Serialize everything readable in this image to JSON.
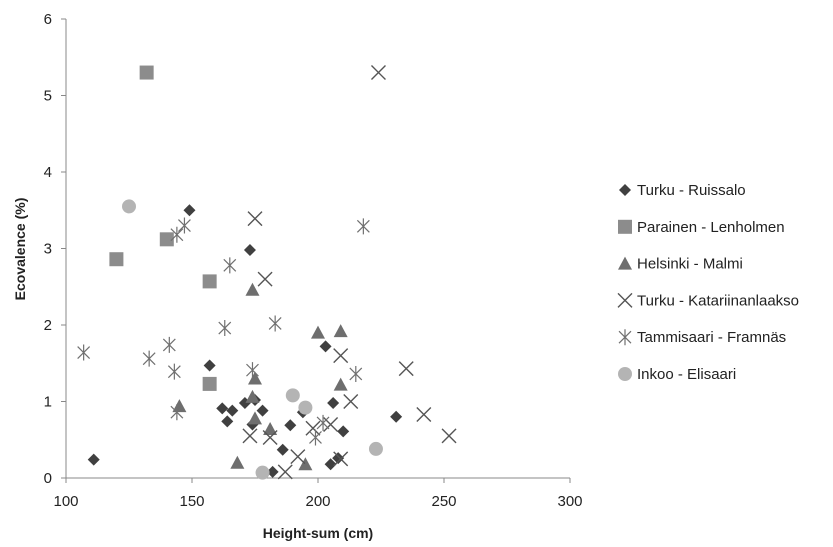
{
  "chart_data": {
    "type": "scatter",
    "title": "",
    "xlabel": "Height-sum (cm)",
    "ylabel": "Ecovalence (%)",
    "xlim": [
      100,
      300
    ],
    "ylim": [
      0,
      6
    ],
    "xticks": [
      "100",
      "150",
      "200",
      "250",
      "300"
    ],
    "yticks": [
      "0",
      "1",
      "2",
      "3",
      "4",
      "5",
      "6"
    ],
    "grid": false,
    "legend_position": "right",
    "series": [
      {
        "name": "Turku - Ruissalo",
        "marker": "diamond",
        "color": "#404040",
        "points": [
          [
            111,
            0.24
          ],
          [
            149,
            3.5
          ],
          [
            157,
            1.47
          ],
          [
            164,
            0.74
          ],
          [
            166,
            0.88
          ],
          [
            171,
            0.98
          ],
          [
            173,
            2.98
          ],
          [
            175,
            1.02
          ],
          [
            178,
            0.88
          ],
          [
            182,
            0.08
          ],
          [
            186,
            0.37
          ],
          [
            189,
            0.69
          ],
          [
            194,
            0.86
          ],
          [
            203,
            1.72
          ],
          [
            205,
            0.18
          ],
          [
            206,
            0.98
          ],
          [
            208,
            0.26
          ],
          [
            210,
            0.61
          ],
          [
            231,
            0.8
          ],
          [
            162,
            0.91
          ],
          [
            174,
            0.7
          ]
        ]
      },
      {
        "name": "Parainen - Lenholmen",
        "marker": "square",
        "color": "#8c8c8c",
        "points": [
          [
            120,
            2.86
          ],
          [
            132,
            5.3
          ],
          [
            140,
            3.12
          ],
          [
            157,
            2.57
          ],
          [
            157,
            1.23
          ]
        ]
      },
      {
        "name": "Helsinki - Malmi",
        "marker": "triangle",
        "color": "#6e6e6e",
        "points": [
          [
            145,
            0.94
          ],
          [
            168,
            0.2
          ],
          [
            174,
            2.46
          ],
          [
            175,
            1.3
          ],
          [
            175,
            0.78
          ],
          [
            181,
            0.64
          ],
          [
            195,
            0.18
          ],
          [
            200,
            1.9
          ],
          [
            209,
            1.92
          ],
          [
            209,
            1.22
          ],
          [
            174,
            1.06
          ]
        ]
      },
      {
        "name": "Turku - Katariinanlaakso",
        "marker": "x",
        "color": "#555555",
        "points": [
          [
            173,
            0.55
          ],
          [
            181,
            0.53
          ],
          [
            187,
            0.08
          ],
          [
            198,
            0.65
          ],
          [
            205,
            0.7
          ],
          [
            209,
            0.25
          ],
          [
            209,
            1.6
          ],
          [
            213,
            1.0
          ],
          [
            224,
            5.3
          ],
          [
            235,
            1.43
          ],
          [
            242,
            0.83
          ],
          [
            252,
            0.55
          ],
          [
            175,
            3.39
          ],
          [
            179,
            2.6
          ],
          [
            192,
            0.28
          ]
        ]
      },
      {
        "name": "Tammisaari - Framnäs",
        "marker": "star",
        "color": "#707070",
        "points": [
          [
            107,
            1.64
          ],
          [
            133,
            1.56
          ],
          [
            141,
            1.74
          ],
          [
            143,
            1.39
          ],
          [
            144,
            0.86
          ],
          [
            144,
            3.18
          ],
          [
            147,
            3.3
          ],
          [
            163,
            1.96
          ],
          [
            165,
            2.78
          ],
          [
            174,
            1.41
          ],
          [
            183,
            2.02
          ],
          [
            199,
            0.53
          ],
          [
            202,
            0.72
          ],
          [
            215,
            1.36
          ],
          [
            218,
            3.29
          ]
        ]
      },
      {
        "name": "Inkoo - Elisaari",
        "marker": "circle",
        "color": "#b4b4b4",
        "points": [
          [
            125,
            3.55
          ],
          [
            178,
            0.07
          ],
          [
            190,
            1.08
          ],
          [
            195,
            0.92
          ],
          [
            223,
            0.38
          ]
        ]
      }
    ]
  }
}
